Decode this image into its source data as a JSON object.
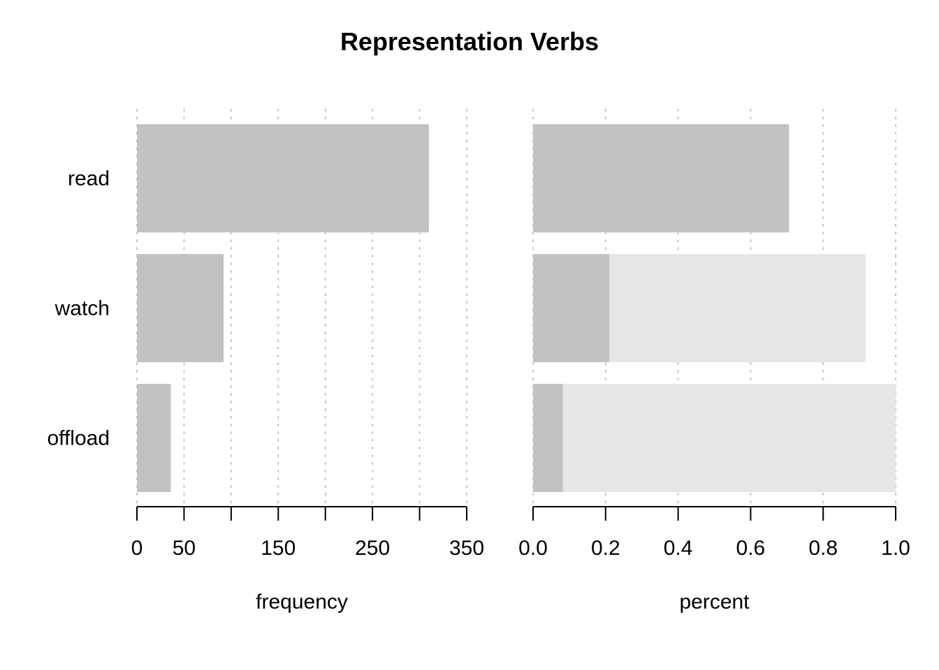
{
  "chart_data": {
    "type": "bar",
    "orientation": "horizontal",
    "title": "Representation Verbs",
    "categories": [
      "read",
      "watch",
      "offload"
    ],
    "panels": [
      {
        "name": "frequency-panel",
        "xlabel": "frequency",
        "xlim": [
          0,
          350
        ],
        "ticks": [
          0,
          50,
          100,
          150,
          200,
          250,
          300,
          350
        ],
        "tick_labels": [
          "0",
          "50",
          "",
          "150",
          "",
          "250",
          "",
          "350"
        ],
        "series": [
          {
            "values": [
              310,
              92,
              36
            ]
          }
        ]
      },
      {
        "name": "percent-panel",
        "xlabel": "percent",
        "xlim": [
          0,
          1
        ],
        "ticks": [
          0,
          0.2,
          0.4,
          0.6,
          0.8,
          1.0
        ],
        "tick_labels": [
          "0.0",
          "0.2",
          "0.4",
          "0.6",
          "0.8",
          "1.0"
        ],
        "series": [
          {
            "values": [
              0.706,
              0.917,
              1.0
            ]
          },
          {
            "values": [
              0.706,
              0.21,
              0.082
            ]
          }
        ]
      }
    ],
    "grid": true,
    "colors": {
      "bar": "#c2c2c2",
      "bar_light": "#e6e6e6",
      "grid": "#c8c8c8"
    }
  }
}
